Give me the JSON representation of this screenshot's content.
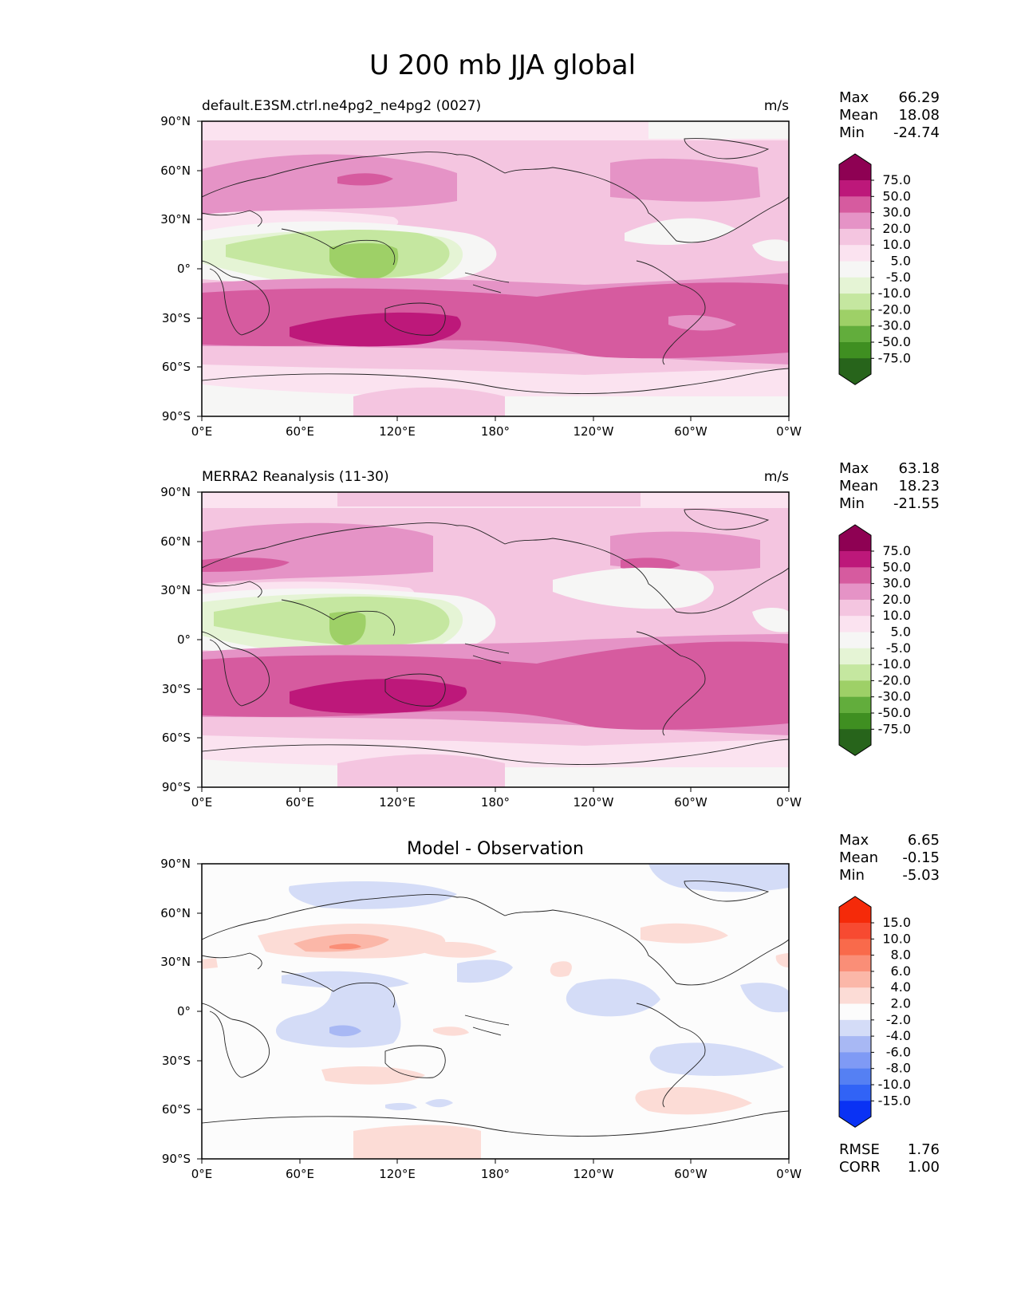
{
  "figure": {
    "title": "U 200 mb JJA global"
  },
  "axes": {
    "lat_ticks": [
      "90°N",
      "60°N",
      "30°N",
      "0°",
      "30°S",
      "60°S",
      "90°S"
    ],
    "lon_ticks": [
      "0°E",
      "60°E",
      "120°E",
      "180°",
      "120°W",
      "60°W",
      "0°W"
    ]
  },
  "colormaps": {
    "field": {
      "colors": [
        "#27641b",
        "#3f8f21",
        "#62ad3c",
        "#9ed067",
        "#c5e7a0",
        "#e5f4d5",
        "#f6f6f5",
        "#fbe3f0",
        "#f4c5e0",
        "#e593c6",
        "#d65b9f",
        "#bd187a",
        "#8e0153"
      ],
      "levels": [
        "75.0",
        "50.0",
        "30.0",
        "20.0",
        "10.0",
        "5.0",
        "-5.0",
        "-10.0",
        "-20.0",
        "-30.0",
        "-50.0",
        "-75.0"
      ]
    },
    "diff": {
      "colors": [
        "#0a32f4",
        "#3163f6",
        "#5580f3",
        "#7f9af5",
        "#a8b8f4",
        "#d4dcf7",
        "#fcfcfc",
        "#fcdcd6",
        "#fbb7a8",
        "#fa8e77",
        "#f96a4b",
        "#f74a31",
        "#f52a09"
      ],
      "levels": [
        "15.0",
        "10.0",
        "8.0",
        "6.0",
        "4.0",
        "2.0",
        "-2.0",
        "-4.0",
        "-6.0",
        "-8.0",
        "-10.0",
        "-15.0"
      ]
    }
  },
  "panels": [
    {
      "title_left": "default.E3SM.ctrl.ne4pg2_ne4pg2 (0027)",
      "title_center": "",
      "units": "m/s",
      "colormap": "field",
      "stats": [
        {
          "label": "Max",
          "value": "66.29"
        },
        {
          "label": "Mean",
          "value": "18.08"
        },
        {
          "label": "Min",
          "value": "-24.74"
        }
      ],
      "extra_stats": []
    },
    {
      "title_left": "MERRA2 Reanalysis (11-30)",
      "title_center": "",
      "units": "m/s",
      "colormap": "field",
      "stats": [
        {
          "label": "Max",
          "value": "63.18"
        },
        {
          "label": "Mean",
          "value": "18.23"
        },
        {
          "label": "Min",
          "value": "-21.55"
        }
      ],
      "extra_stats": []
    },
    {
      "title_left": "",
      "title_center": "Model - Observation",
      "units": "",
      "colormap": "diff",
      "stats": [
        {
          "label": "Max",
          "value": "6.65"
        },
        {
          "label": "Mean",
          "value": "-0.15"
        },
        {
          "label": "Min",
          "value": "-5.03"
        }
      ],
      "extra_stats": [
        {
          "label": "RMSE",
          "value": "1.76"
        },
        {
          "label": "CORR",
          "value": "1.00"
        }
      ]
    }
  ]
}
